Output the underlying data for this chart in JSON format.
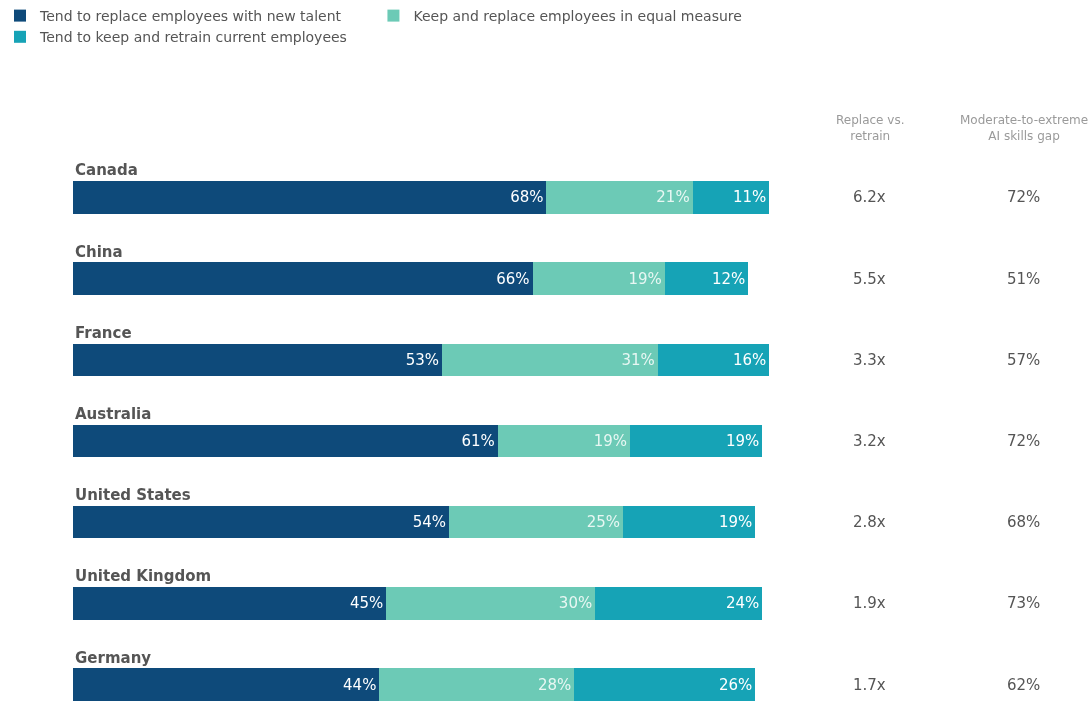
{
  "chart_data": {
    "type": "bar",
    "orientation": "horizontal",
    "stacked": true,
    "legend": "top left",
    "categories": [
      "Canada",
      "China",
      "France",
      "Australia",
      "United States",
      "United Kingdom",
      "Germany"
    ],
    "series": [
      {
        "name": "Tend to replace employees with new talent",
        "color": "#0e4a7a",
        "values": [
          68,
          66,
          53,
          61,
          54,
          45,
          44
        ],
        "value_labels": [
          "68%",
          "66%",
          "53%",
          "61%",
          "54%",
          "45%",
          "44%"
        ]
      },
      {
        "name": "Keep and replace employees in equal measure",
        "color": "#6ccab6",
        "values": [
          21,
          19,
          31,
          19,
          25,
          30,
          28
        ],
        "value_labels": [
          "21%",
          "19%",
          "31%",
          "19%",
          "25%",
          "30%",
          "28%"
        ]
      },
      {
        "name": "Tend to keep and retrain current employees",
        "color": "#16a3b6",
        "values": [
          11,
          12,
          16,
          19,
          19,
          24,
          26
        ],
        "value_labels": [
          "11%",
          "12%",
          "16%",
          "19%",
          "19%",
          "24%",
          "26%"
        ]
      }
    ],
    "annotations": [
      "Replace vs.\nretrain",
      "Moderate-to-extreme\nAI skills gap",
      "6.2x",
      "72%",
      "5.5x",
      "51%",
      "3.3x",
      "57%",
      "3.2x",
      "72%",
      "2.8x",
      "68%",
      "1.9x",
      "73%",
      "1.7x",
      "62%"
    ]
  }
}
